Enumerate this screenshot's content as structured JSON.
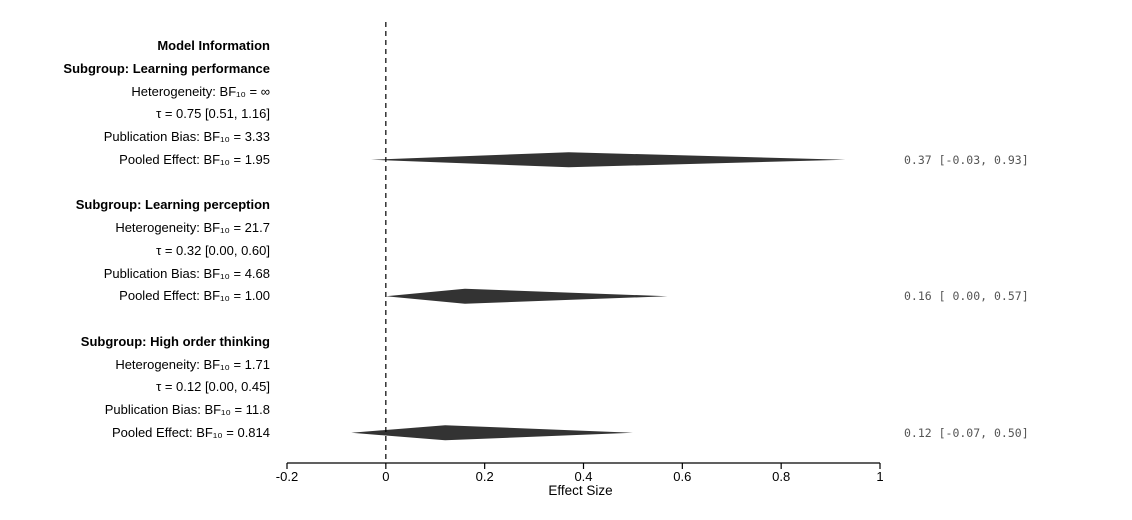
{
  "chart_data": {
    "type": "forest",
    "xlabel": "Effect Size",
    "xlim": [
      -0.2,
      1.0
    ],
    "x_ticks": [
      "-0.2",
      "0",
      "0.2",
      "0.4",
      "0.6",
      "0.8",
      "1"
    ],
    "reference_line": 0,
    "rows": [
      {
        "label": "Model Information",
        "kind": "heading"
      },
      {
        "label": "Subgroup: Learning performance",
        "kind": "heading"
      },
      {
        "label": "Heterogeneity: BF₁₀ = ∞",
        "kind": "info"
      },
      {
        "label": "τ  = 0.75 [0.51, 1.16]",
        "kind": "info"
      },
      {
        "label": "Publication Bias: BF₁₀ = 3.33",
        "kind": "info"
      },
      {
        "label": "Pooled Effect: BF₁₀ = 1.95",
        "kind": "pooled",
        "estimate": 0.37,
        "lower": -0.03,
        "upper": 0.93,
        "ci_text": "0.37 [-0.03, 0.93]"
      },
      {
        "label": "",
        "kind": "spacer"
      },
      {
        "label": "Subgroup: Learning perception",
        "kind": "heading"
      },
      {
        "label": "Heterogeneity: BF₁₀ = 21.7",
        "kind": "info"
      },
      {
        "label": "τ  = 0.32 [0.00, 0.60]",
        "kind": "info"
      },
      {
        "label": "Publication Bias: BF₁₀ = 4.68",
        "kind": "info"
      },
      {
        "label": "Pooled Effect: BF₁₀ = 1.00",
        "kind": "pooled",
        "estimate": 0.16,
        "lower": 0.0,
        "upper": 0.57,
        "ci_text": "0.16 [ 0.00, 0.57]"
      },
      {
        "label": "",
        "kind": "spacer"
      },
      {
        "label": "Subgroup: High order thinking",
        "kind": "heading"
      },
      {
        "label": "Heterogeneity: BF₁₀ = 1.71",
        "kind": "info"
      },
      {
        "label": "τ  = 0.12 [0.00, 0.45]",
        "kind": "info"
      },
      {
        "label": "Publication Bias: BF₁₀ = 11.8",
        "kind": "info"
      },
      {
        "label": "Pooled Effect: BF₁₀ = 0.814",
        "kind": "pooled",
        "estimate": 0.12,
        "lower": -0.07,
        "upper": 0.5,
        "ci_text": "0.12 [-0.07, 0.50]"
      }
    ],
    "colors": {
      "diamond": "#333333",
      "ci_text": "#555555",
      "axis": "#000000"
    }
  }
}
